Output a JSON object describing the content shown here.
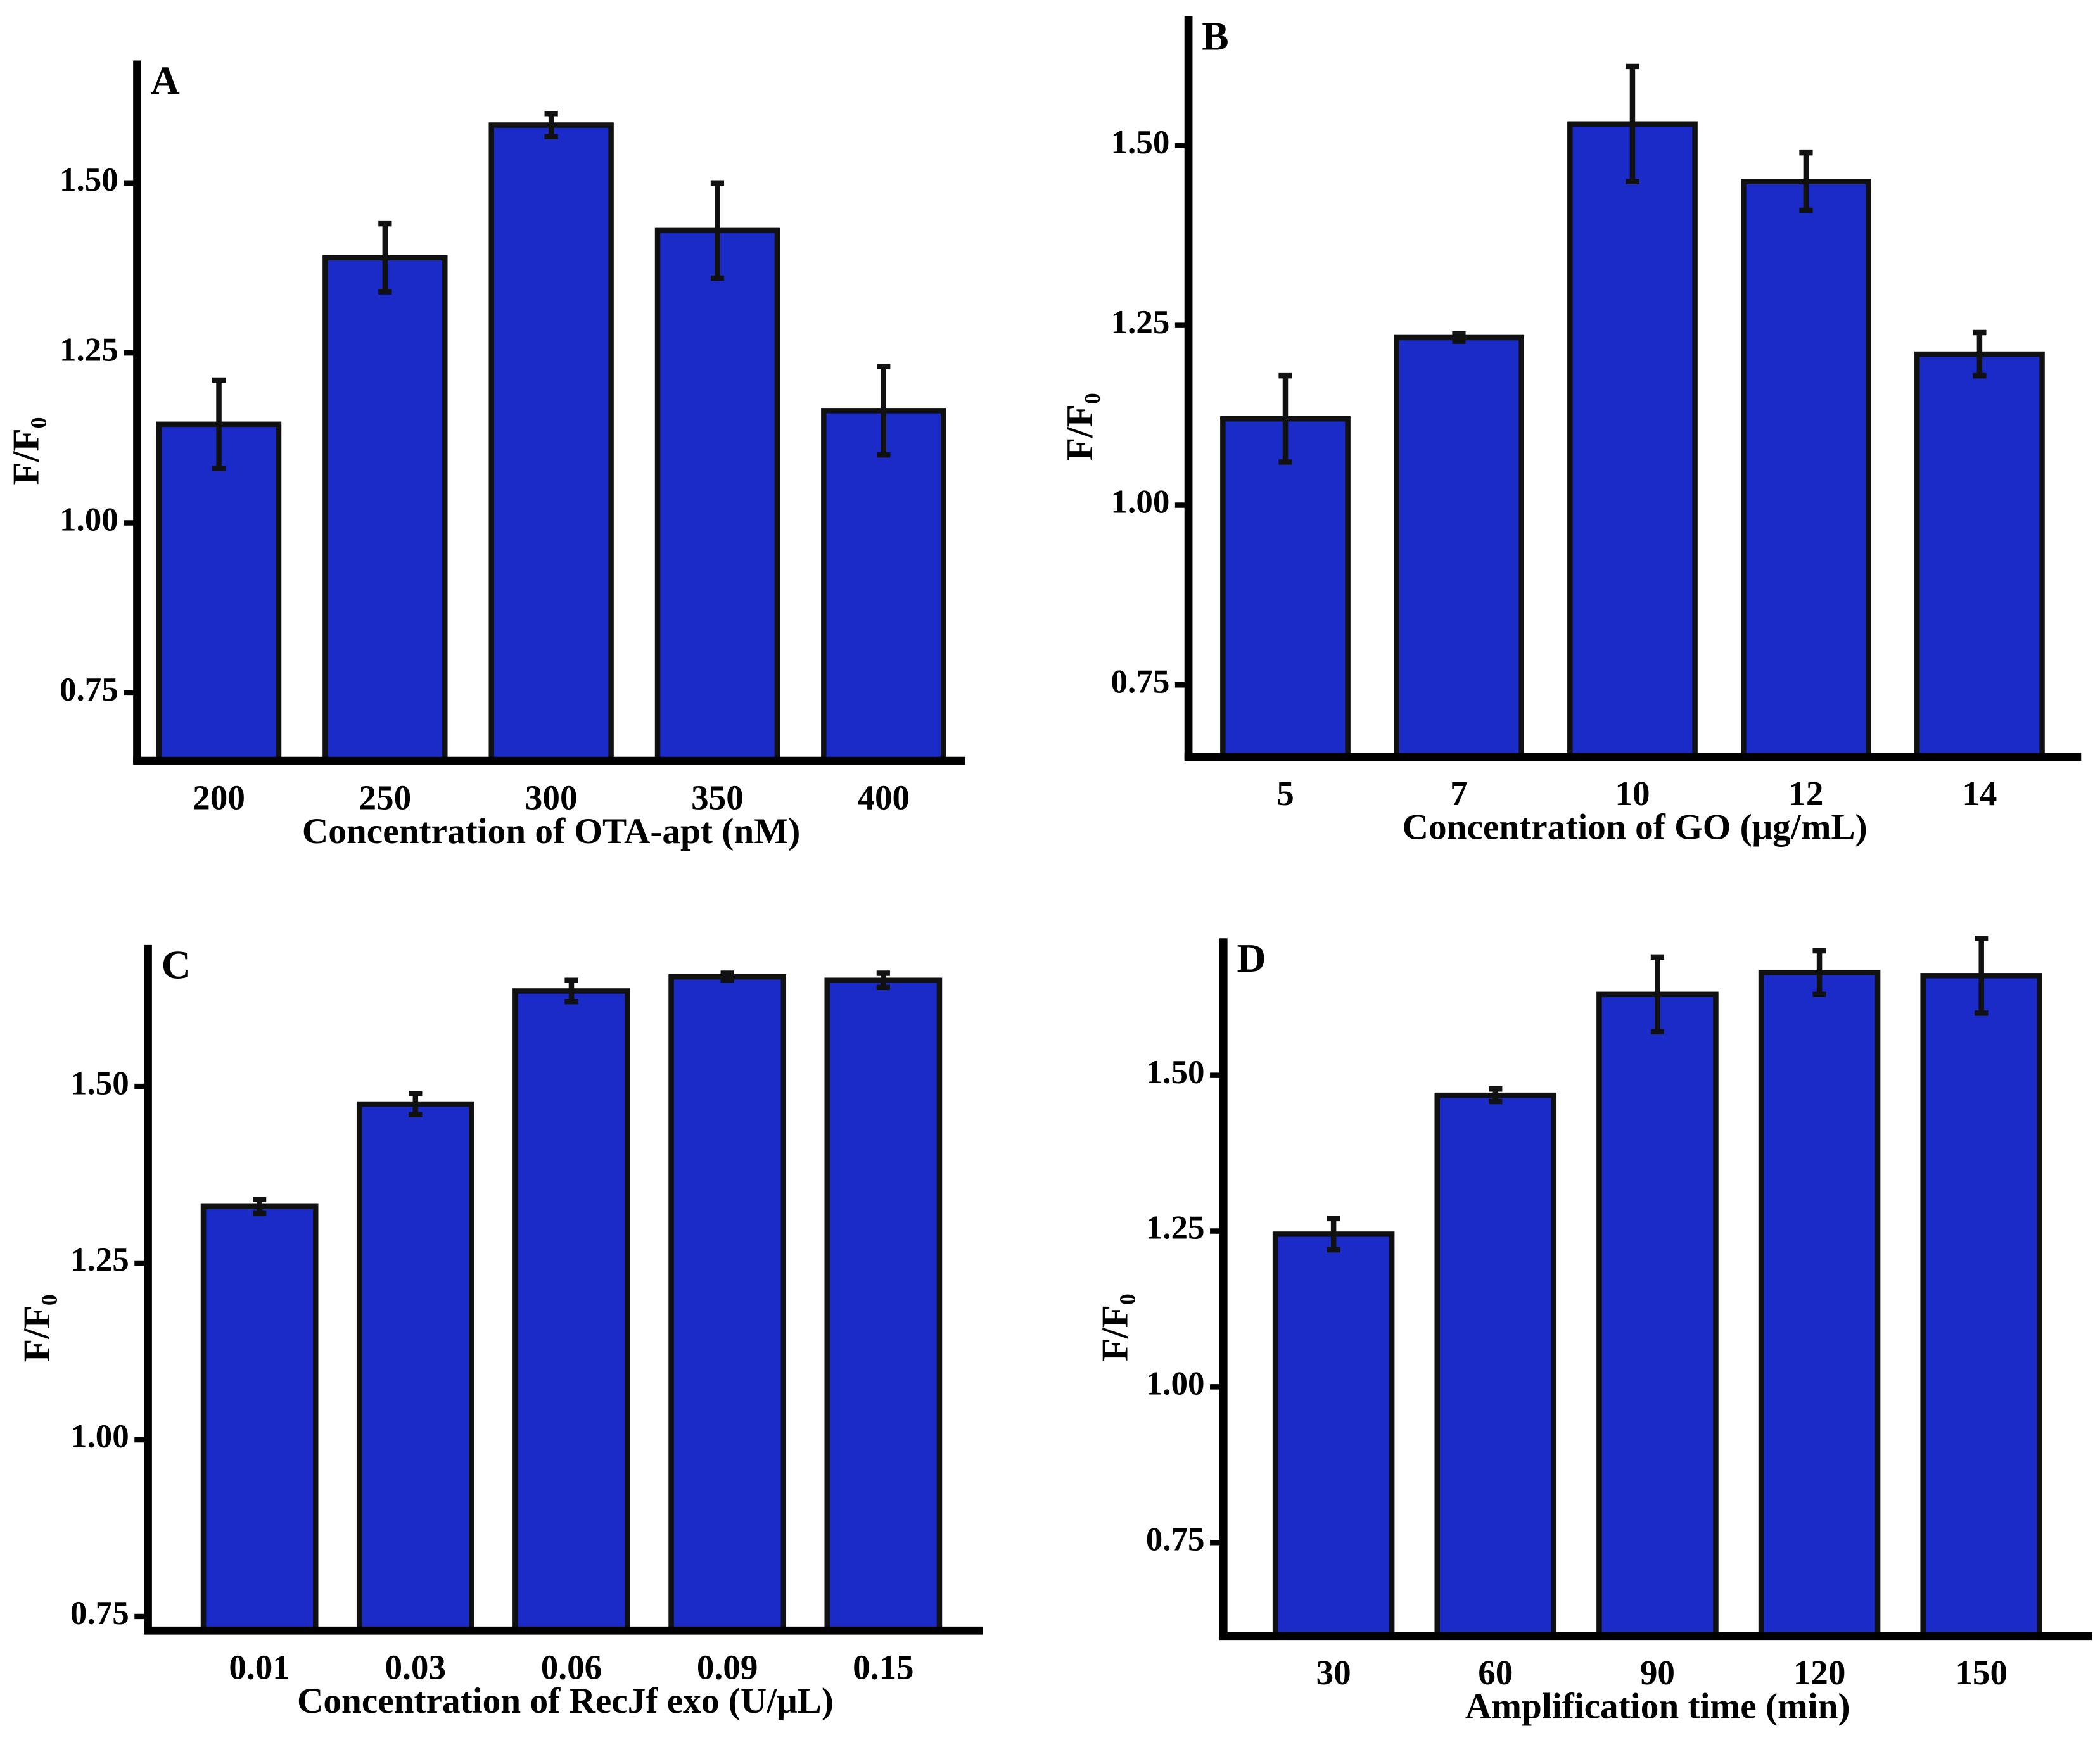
{
  "chart_data": [
    {
      "type": "bar",
      "panel": "A",
      "y_label": "F/F₀",
      "x_label": "Concentration of OTA-apt (nM)",
      "categories": [
        "200",
        "250",
        "300",
        "350",
        "400"
      ],
      "values": [
        1.145,
        1.39,
        1.585,
        1.43,
        1.165
      ],
      "errors": [
        0.065,
        0.05,
        0.017,
        0.07,
        0.065
      ],
      "color": "#1a2bc8",
      "ylim": [
        0.65,
        1.68
      ],
      "yticks": [
        0.75,
        {
          "value": 1,
          "label": "1.00"
        },
        1.25,
        {
          "value": 1.5,
          "label": "1.50"
        }
      ]
    },
    {
      "type": "bar",
      "panel": "B",
      "y_label": "F/F₀",
      "x_label": "Concentration of  GO (μg/mL)",
      "categories": [
        "5",
        "7",
        "10",
        "12",
        "14"
      ],
      "values": [
        1.12,
        1.233,
        1.53,
        1.45,
        1.21
      ],
      "errors": [
        0.06,
        0.005,
        0.08,
        0.04,
        0.03
      ],
      "color": "#1a2bc8",
      "ylim": [
        0.65,
        1.68
      ],
      "yticks": [
        0.75,
        {
          "value": 1,
          "label": "1.00"
        },
        1.25,
        {
          "value": 1.5,
          "label": "1.50"
        }
      ]
    },
    {
      "type": "bar",
      "panel": "C",
      "y_label": "F/F₀",
      "x_label": "Concentration of  RecJf exo (U/μL)",
      "categories": [
        "0.01",
        "0.03",
        "0.06",
        "0.09",
        "0.15"
      ],
      "values": [
        1.33,
        1.475,
        1.635,
        1.655,
        1.65
      ],
      "errors": [
        0.01,
        0.015,
        0.015,
        0.005,
        0.01
      ],
      "color": "#1a2bc8",
      "ylim": [
        0.73,
        1.7
      ],
      "yticks": [
        0.75,
        {
          "value": 1,
          "label": "1.00"
        },
        1.25,
        {
          "value": 1.5,
          "label": "1.50"
        }
      ]
    },
    {
      "type": "bar",
      "panel": "D",
      "y_label": "F/F₀",
      "x_label": "Amplification time (min)",
      "categories": [
        "30",
        "60",
        "90",
        "120",
        "150"
      ],
      "values": [
        1.245,
        1.468,
        1.63,
        1.665,
        1.66
      ],
      "errors": [
        0.025,
        0.01,
        0.06,
        0.035,
        0.06
      ],
      "color": "#1a2bc8",
      "ylim": [
        0.6,
        1.72
      ],
      "yticks": [
        0.75,
        {
          "value": 1,
          "label": "1.00"
        },
        1.25,
        {
          "value": 1.5,
          "label": "1.50"
        }
      ]
    }
  ]
}
